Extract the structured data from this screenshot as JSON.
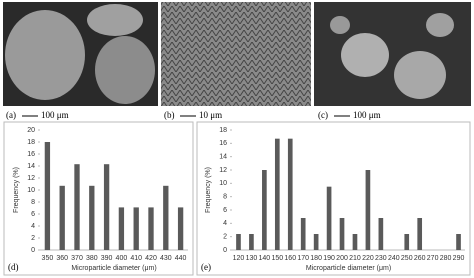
{
  "panels": [
    {
      "letter": "(a)",
      "scale": "100 μm"
    },
    {
      "letter": "(b)",
      "scale": "10 μm"
    },
    {
      "letter": "(c)",
      "scale": "100 μm"
    }
  ],
  "chart_data": [
    {
      "type": "bar",
      "letter": "(d)",
      "ylabel": "Frequency (%)",
      "xlabel": "Microparticle diameter (μm)",
      "categories": [
        "350",
        "360",
        "370",
        "380",
        "390",
        "400",
        "410",
        "420",
        "430",
        "440"
      ],
      "values": [
        18,
        10.7,
        14.3,
        10.7,
        14.3,
        7.1,
        7.1,
        7.1,
        10.7,
        7.1
      ],
      "color": "#5a5a5a",
      "ylim": [
        0,
        20
      ],
      "yticks": [
        0,
        2,
        4,
        6,
        8,
        10,
        12,
        14,
        16,
        18,
        20
      ],
      "grid": false
    },
    {
      "type": "bar",
      "letter": "(e)",
      "ylabel": "Frequency (%)",
      "xlabel": "Microparticle diameter (μm)",
      "categories": [
        "120",
        "130",
        "140",
        "150",
        "160",
        "170",
        "180",
        "190",
        "200",
        "210",
        "220",
        "230",
        "240",
        "250",
        "260",
        "270",
        "280",
        "290"
      ],
      "values": [
        2.4,
        2.4,
        12,
        16.7,
        16.7,
        4.8,
        2.4,
        9.5,
        4.8,
        2.4,
        12,
        4.8,
        0,
        2.4,
        4.8,
        0,
        0,
        2.4
      ],
      "color": "#5a5a5a",
      "ylim": [
        0,
        18
      ],
      "yticks": [
        0,
        2,
        4,
        6,
        8,
        10,
        12,
        14,
        16,
        18
      ],
      "grid": false
    }
  ]
}
